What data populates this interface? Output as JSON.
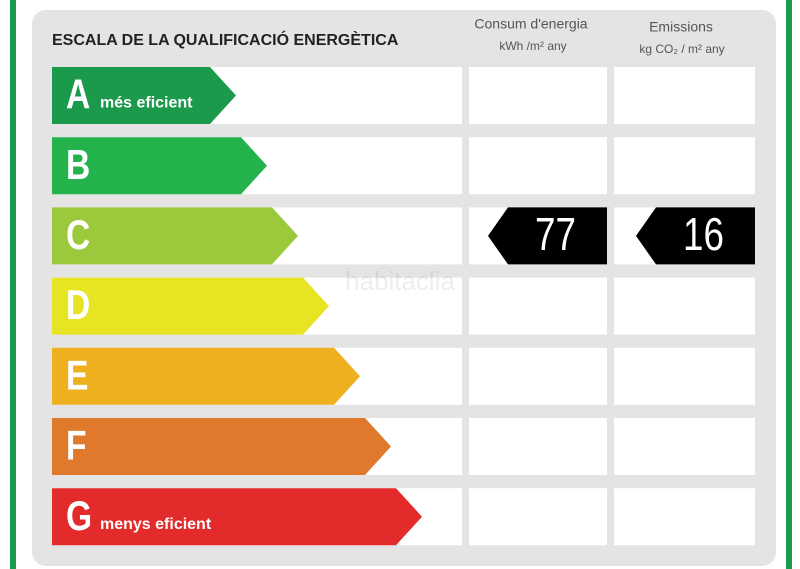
{
  "header": {
    "title": "ESCALA DE LA QUALIFICACIÓ ENERGÈTICA",
    "consumption": {
      "title": "Consum d'energia",
      "unit": "kWh /m² any"
    },
    "emissions": {
      "title": "Emissions",
      "unit": "kg CO₂ / m² any"
    }
  },
  "watermark": "habitaclia",
  "rows": [
    {
      "letter": "A",
      "note": "més eficient",
      "color": "#1b9a4b"
    },
    {
      "letter": "B",
      "color": "#23b24b"
    },
    {
      "letter": "C",
      "color": "#9cc93c",
      "consumption": 77,
      "emissions": 16
    },
    {
      "letter": "D",
      "color": "#e7e523"
    },
    {
      "letter": "E",
      "color": "#eeb01f"
    },
    {
      "letter": "F",
      "color": "#e0792b"
    },
    {
      "letter": "G",
      "note": "menys eficient",
      "color": "#e32b2b"
    }
  ]
}
